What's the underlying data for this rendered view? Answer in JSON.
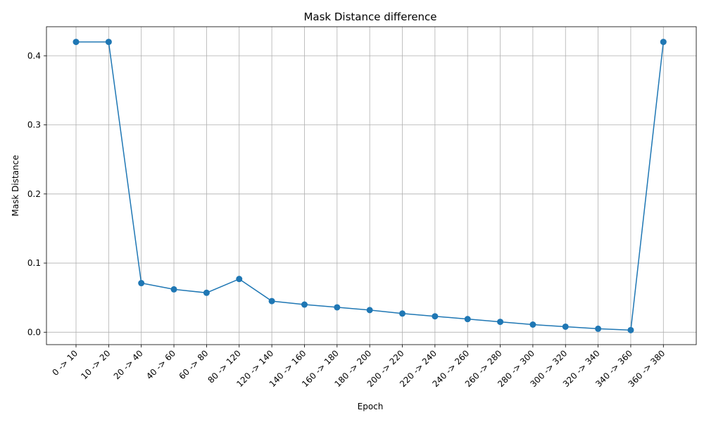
{
  "chart_data": {
    "type": "line",
    "title": "Mask Distance difference",
    "xlabel": "Epoch",
    "ylabel": "Mask Distance",
    "categories": [
      "0 -> 10",
      "10 -> 20",
      "20 -> 40",
      "40 -> 60",
      "60 -> 80",
      "80 -> 120",
      "120 -> 140",
      "140 -> 160",
      "160 -> 180",
      "180 -> 200",
      "200 -> 220",
      "220 -> 240",
      "240 -> 260",
      "260 -> 280",
      "280 -> 300",
      "300 -> 320",
      "320 -> 340",
      "340 -> 360",
      "360 -> 380"
    ],
    "values": [
      0.42,
      0.42,
      0.071,
      0.062,
      0.057,
      0.077,
      0.045,
      0.04,
      0.036,
      0.032,
      0.027,
      0.023,
      0.019,
      0.015,
      0.011,
      0.008,
      0.005,
      0.003,
      0.42
    ],
    "ylim": [
      -0.018,
      0.442
    ],
    "yticks": [
      0.0,
      0.1,
      0.2,
      0.3,
      0.4
    ],
    "ytick_labels": [
      "0.0",
      "0.1",
      "0.2",
      "0.3",
      "0.4"
    ],
    "grid": true,
    "color": "#1f77b4",
    "marker": "circle"
  }
}
